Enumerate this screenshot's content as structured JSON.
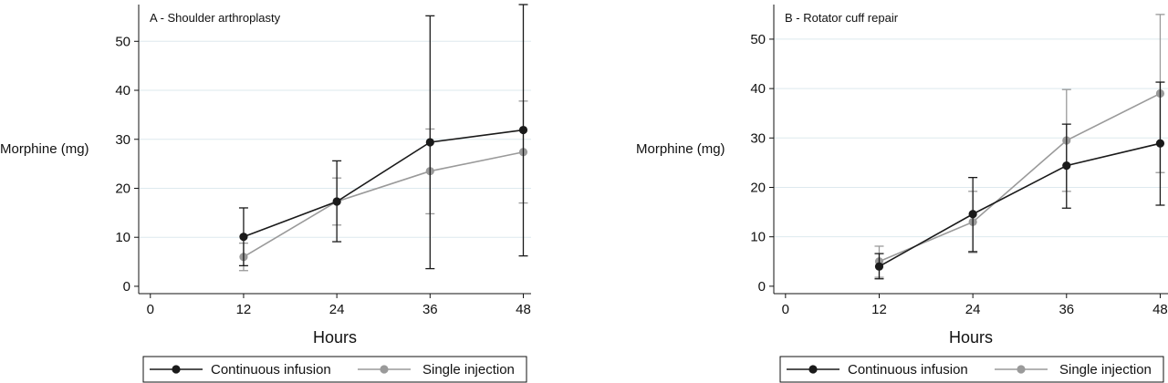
{
  "colors": {
    "continuous": "#1a1a1a",
    "single": "#9a9a9a",
    "grid": "#dde9ee",
    "axis": "#111111"
  },
  "chart_data": [
    {
      "type": "line",
      "title": "A - Shoulder arthroplasty",
      "xlabel": "Hours",
      "ylabel": "Morphine (mg)",
      "x_ticks": [
        "0",
        "12",
        "24",
        "36",
        "48"
      ],
      "y_ticks": [
        "0",
        "10",
        "20",
        "30",
        "40",
        "50"
      ],
      "xlim": [
        -1.5,
        49
      ],
      "ylim": [
        -1.5,
        57.5
      ],
      "grid": true,
      "legend_position": "bottom",
      "x": [
        12,
        24,
        36,
        48
      ],
      "series": [
        {
          "name": "Continuous infusion",
          "color_key": "continuous",
          "values": [
            10.1,
            17.3,
            29.4,
            31.9
          ],
          "lower": [
            4.2,
            9.1,
            3.6,
            6.2
          ],
          "upper": [
            16.0,
            25.6,
            55.2,
            57.5
          ]
        },
        {
          "name": "Single injection",
          "color_key": "single",
          "values": [
            6.0,
            17.3,
            23.5,
            27.4
          ],
          "lower": [
            3.2,
            12.5,
            14.8,
            17.0
          ],
          "upper": [
            8.8,
            22.1,
            32.1,
            37.8
          ]
        }
      ]
    },
    {
      "type": "line",
      "title": "B - Rotator cuff repair",
      "xlabel": "Hours",
      "ylabel": "Morphine (mg)",
      "x_ticks": [
        "0",
        "12",
        "24",
        "36",
        "48"
      ],
      "y_ticks": [
        "0",
        "10",
        "20",
        "30",
        "40",
        "50"
      ],
      "xlim": [
        -1.5,
        49
      ],
      "ylim": [
        -1.5,
        57
      ],
      "grid": true,
      "legend_position": "bottom",
      "x": [
        12,
        24,
        36,
        48
      ],
      "series": [
        {
          "name": "Continuous infusion",
          "color_key": "continuous",
          "values": [
            4.0,
            14.6,
            24.4,
            28.9
          ],
          "lower": [
            1.5,
            7.0,
            15.8,
            16.4
          ],
          "upper": [
            6.6,
            22.0,
            32.8,
            41.3
          ]
        },
        {
          "name": "Single injection",
          "color_key": "single",
          "values": [
            5.0,
            13.0,
            29.5,
            39.0
          ],
          "lower": [
            1.8,
            6.8,
            19.2,
            23.0
          ],
          "upper": [
            8.1,
            19.2,
            39.8,
            55.0
          ]
        }
      ]
    }
  ]
}
